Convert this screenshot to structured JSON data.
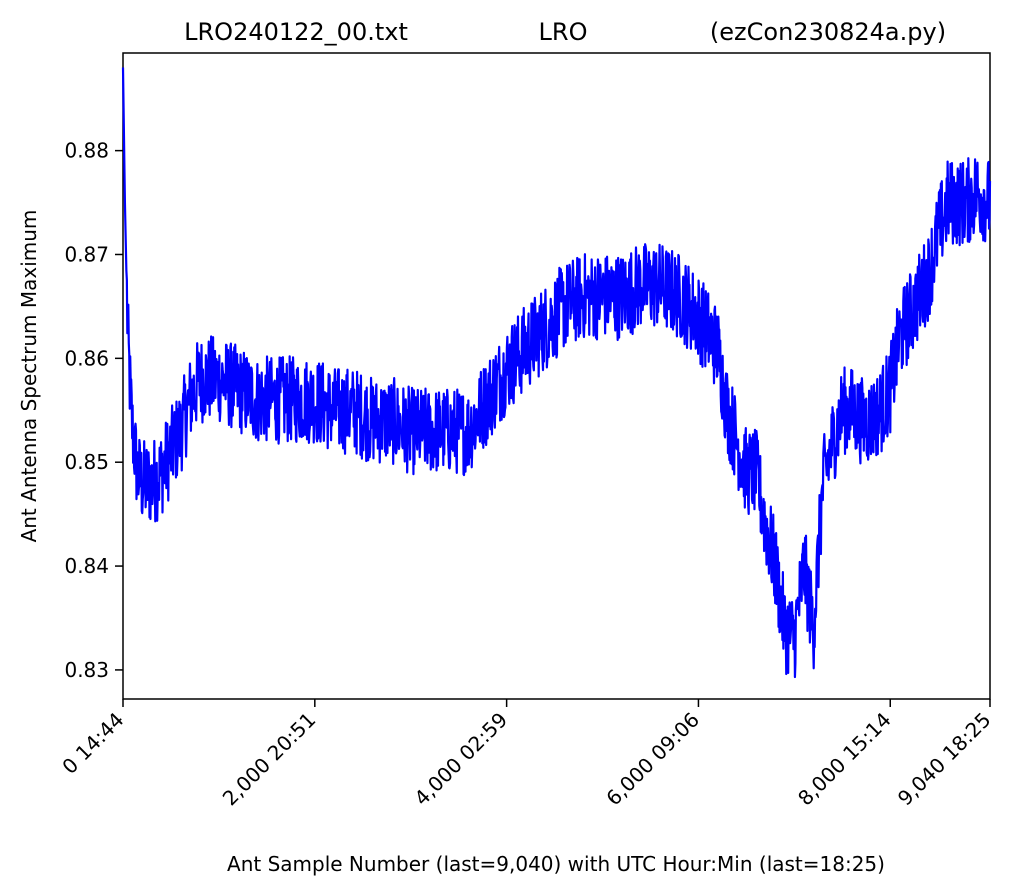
{
  "title": {
    "left": "LRO240122_00.txt",
    "center": "LRO",
    "right": "(ezCon230824a.py)"
  },
  "chart_data": {
    "type": "line",
    "xlabel": "Ant Sample Number (last=9,040) with UTC Hour:Min (last=18:25)",
    "ylabel": "Ant Antenna Spectrum Maximum",
    "xlim": [
      0,
      9040
    ],
    "ylim": [
      0.8272,
      0.8894
    ],
    "grid": false,
    "x_ticks": [
      {
        "value": 0,
        "label": "0  14:44"
      },
      {
        "value": 2000,
        "label": "2,000  20:51"
      },
      {
        "value": 4000,
        "label": "4,000  02:59"
      },
      {
        "value": 6000,
        "label": "6,000  09:06"
      },
      {
        "value": 8000,
        "label": "8,000  15:14"
      },
      {
        "value": 9040,
        "label": "9,040  18:25"
      }
    ],
    "y_ticks": [
      {
        "value": 0.83,
        "label": "0.83"
      },
      {
        "value": 0.84,
        "label": "0.84"
      },
      {
        "value": 0.85,
        "label": "0.85"
      },
      {
        "value": 0.86,
        "label": "0.86"
      },
      {
        "value": 0.87,
        "label": "0.87"
      },
      {
        "value": 0.88,
        "label": "0.88"
      }
    ],
    "series": [
      {
        "color": "#0000ff",
        "x": [
          0,
          20,
          50,
          80,
          100,
          150,
          200,
          300,
          400,
          500,
          600,
          700,
          800,
          1000,
          1200,
          1400,
          1600,
          1800,
          2000,
          2200,
          2400,
          2600,
          2800,
          3000,
          3200,
          3400,
          3600,
          3800,
          4000,
          4200,
          4400,
          4600,
          4800,
          5000,
          5200,
          5400,
          5600,
          5800,
          6000,
          6200,
          6300,
          6400,
          6500,
          6600,
          6700,
          6800,
          6900,
          7000,
          7100,
          7200,
          7300,
          7400,
          7500,
          7600,
          7700,
          7800,
          7900,
          8000,
          8100,
          8200,
          8300,
          8400,
          8500,
          8600,
          8700,
          8800,
          8900,
          9040
        ],
        "y": [
          0.888,
          0.875,
          0.862,
          0.856,
          0.853,
          0.849,
          0.848,
          0.848,
          0.849,
          0.851,
          0.853,
          0.856,
          0.858,
          0.858,
          0.857,
          0.856,
          0.856,
          0.856,
          0.856,
          0.855,
          0.855,
          0.854,
          0.854,
          0.853,
          0.853,
          0.853,
          0.853,
          0.856,
          0.859,
          0.861,
          0.863,
          0.865,
          0.866,
          0.866,
          0.866,
          0.867,
          0.867,
          0.866,
          0.864,
          0.861,
          0.855,
          0.852,
          0.849,
          0.849,
          0.844,
          0.84,
          0.834,
          0.833,
          0.84,
          0.834,
          0.848,
          0.852,
          0.855,
          0.855,
          0.854,
          0.854,
          0.855,
          0.857,
          0.862,
          0.864,
          0.866,
          0.868,
          0.872,
          0.875,
          0.875,
          0.875,
          0.876,
          0.875
        ]
      }
    ]
  }
}
